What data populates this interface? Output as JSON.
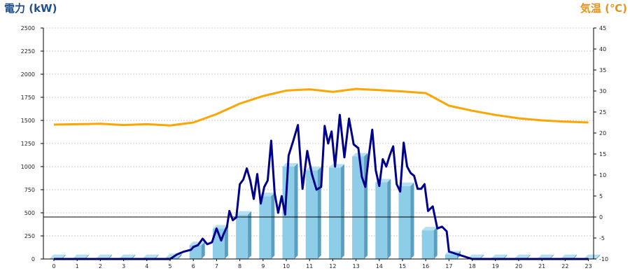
{
  "chart_data": {
    "type": "bar",
    "title_left": "電力 (kW)",
    "title_right": "気温 (℃)",
    "x_ticks": [
      "0",
      "1",
      "2",
      "3",
      "4",
      "5",
      "6",
      "7",
      "8",
      "9",
      "10",
      "11",
      "12",
      "13",
      "14",
      "15",
      "16",
      "17",
      "18",
      "19",
      "20",
      "21",
      "22",
      "23"
    ],
    "y_left_ticks": [
      "0",
      "250",
      "500",
      "750",
      "1000",
      "1250",
      "1500",
      "1750",
      "2000",
      "2250",
      "2500"
    ],
    "y_right_ticks": [
      "-10",
      "-5",
      "0",
      "5",
      "10",
      "15",
      "20",
      "25",
      "30",
      "35",
      "40",
      "45"
    ],
    "ylim_left": [
      0,
      2500
    ],
    "ylim_right": [
      -10,
      45
    ],
    "grid": true,
    "hourly_bars": {
      "hours": [
        0,
        1,
        2,
        3,
        4,
        5,
        6,
        7,
        8,
        9,
        10,
        11,
        12,
        13,
        14,
        15,
        16,
        17,
        18,
        19,
        20,
        21,
        22,
        23
      ],
      "values": [
        10,
        10,
        10,
        10,
        10,
        20,
        150,
        330,
        480,
        680,
        1000,
        960,
        990,
        1110,
        830,
        790,
        310,
        50,
        10,
        10,
        10,
        10,
        10,
        10
      ]
    },
    "power_line": {
      "x": [
        0,
        1,
        2,
        3,
        4,
        5,
        5.3,
        5.6,
        5.9,
        6.0,
        6.2,
        6.4,
        6.6,
        6.8,
        7.0,
        7.2,
        7.3,
        7.45,
        7.55,
        7.7,
        7.85,
        8.0,
        8.15,
        8.3,
        8.45,
        8.6,
        8.75,
        8.9,
        9.05,
        9.2,
        9.35,
        9.5,
        9.65,
        9.8,
        9.95,
        10.1,
        10.3,
        10.5,
        10.7,
        10.9,
        11.1,
        11.3,
        11.5,
        11.65,
        11.8,
        11.95,
        12.1,
        12.3,
        12.5,
        12.7,
        12.9,
        13.1,
        13.25,
        13.4,
        13.55,
        13.7,
        13.85,
        14.0,
        14.15,
        14.3,
        14.45,
        14.6,
        14.75,
        14.9,
        15.05,
        15.2,
        15.35,
        15.5,
        15.65,
        15.8,
        15.95,
        16.1,
        16.3,
        16.5,
        16.7,
        16.9,
        17.0,
        18,
        19,
        20,
        21,
        22,
        23
      ],
      "y": [
        0,
        0,
        0,
        0,
        0,
        0,
        50,
        80,
        100,
        130,
        150,
        220,
        160,
        180,
        330,
        200,
        270,
        350,
        520,
        420,
        450,
        810,
        860,
        980,
        850,
        650,
        920,
        600,
        780,
        850,
        1280,
        710,
        500,
        680,
        480,
        1120,
        1280,
        1450,
        760,
        1170,
        920,
        750,
        780,
        1440,
        1250,
        1380,
        1000,
        1560,
        1100,
        1520,
        1240,
        1200,
        890,
        780,
        1120,
        1400,
        960,
        790,
        1080,
        1000,
        1120,
        1220,
        810,
        730,
        1260,
        1000,
        930,
        900,
        760,
        760,
        810,
        520,
        570,
        330,
        350,
        300,
        80,
        0,
        0,
        0,
        0,
        0,
        0
      ]
    },
    "temperature_line": {
      "x": [
        0,
        1,
        2,
        3,
        4,
        5,
        6,
        7,
        8,
        9,
        10,
        11,
        12,
        13,
        14,
        15,
        16,
        17,
        18,
        19,
        20,
        21,
        22,
        23
      ],
      "y": [
        22.0,
        22.1,
        22.2,
        21.9,
        22.1,
        21.8,
        22.5,
        24.5,
        27.0,
        28.8,
        30.1,
        30.4,
        29.8,
        30.5,
        30.2,
        29.9,
        29.5,
        26.5,
        25.3,
        24.3,
        23.5,
        23.0,
        22.7,
        22.5
      ]
    },
    "reference_line_value": 0,
    "colors": {
      "bars": "#8ecde8",
      "bar_side": "#5a9fc0",
      "power_line": "#00008b",
      "temperature_line": "#ffa500",
      "reference_line": "#000000",
      "gridline": "#cccccc"
    }
  }
}
